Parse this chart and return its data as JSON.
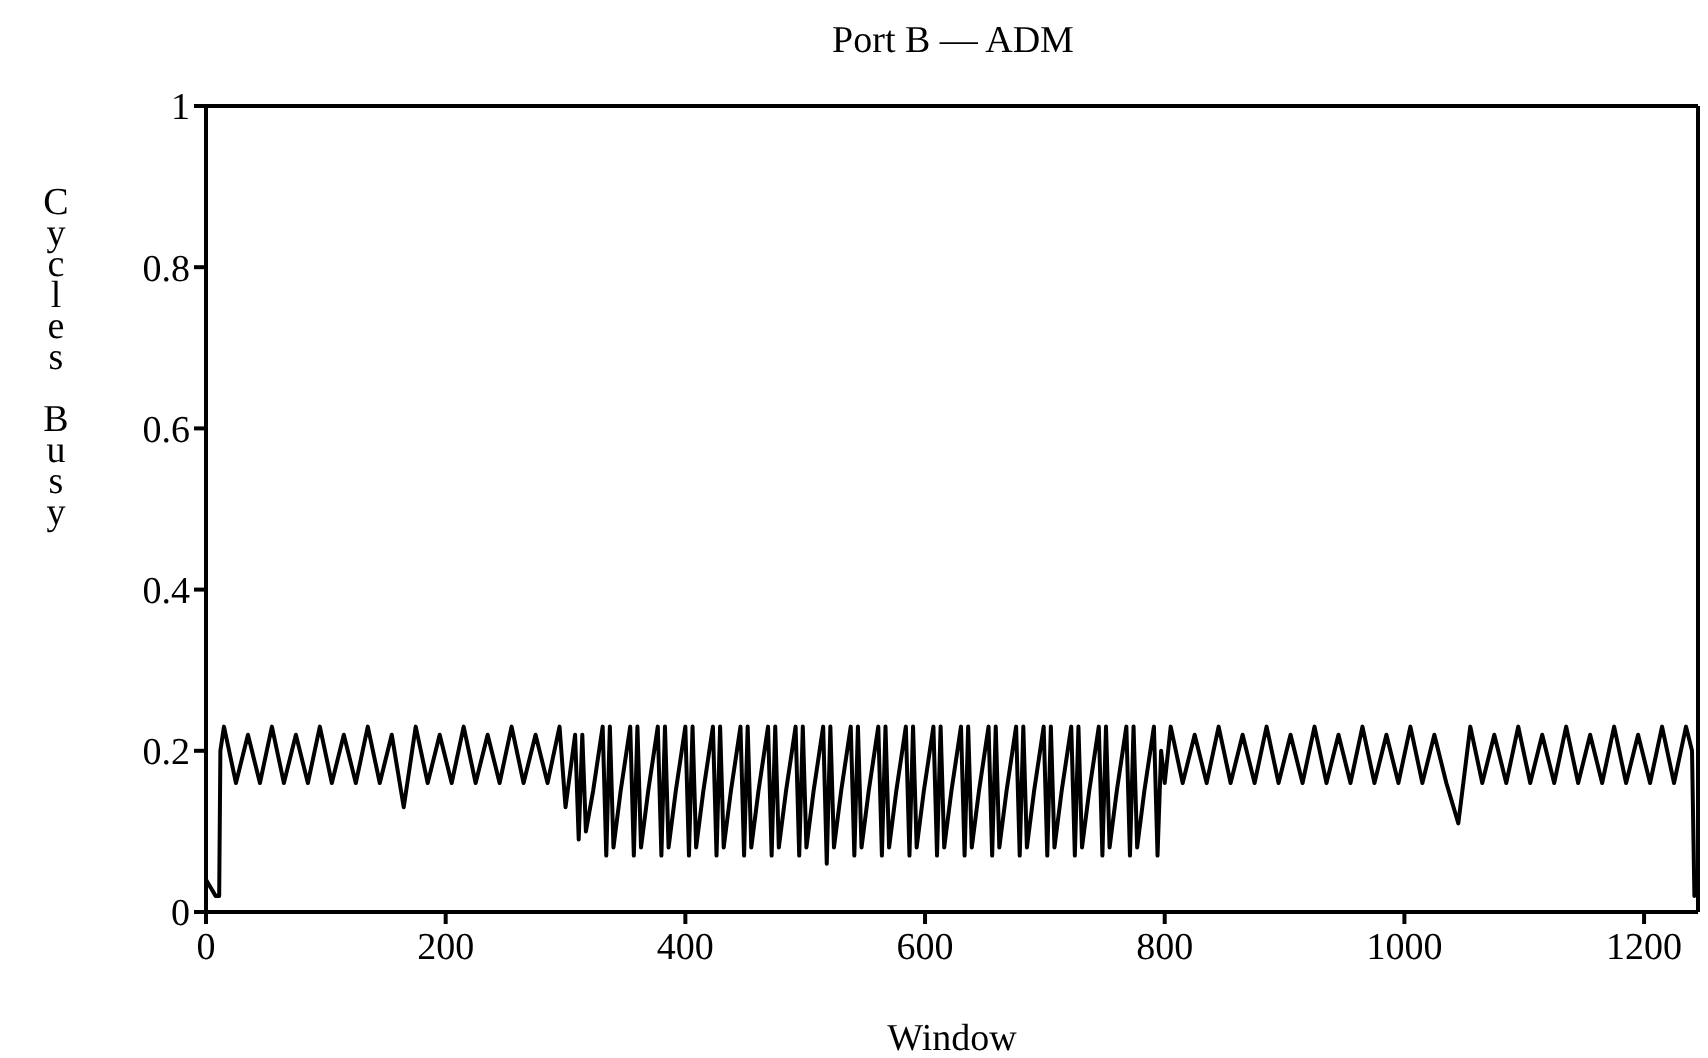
{
  "chart_data": {
    "type": "line",
    "title": "Port B — ADM",
    "xlabel": "Window",
    "ylabel": "Cycles Busy",
    "xlim": [
      0,
      1245
    ],
    "xticks": [
      0,
      200,
      400,
      600,
      800,
      1000,
      1200
    ],
    "ylim": [
      0,
      1
    ],
    "yticks": [
      0,
      0.2,
      0.4,
      0.6,
      0.8,
      1
    ],
    "grid": false,
    "legend": false,
    "series": [
      {
        "color": "#000000",
        "x": [
          0,
          4,
          8,
          11,
          12,
          15,
          25,
          35,
          45,
          55,
          65,
          75,
          85,
          95,
          105,
          115,
          125,
          135,
          145,
          155,
          165,
          175,
          185,
          195,
          205,
          215,
          225,
          235,
          245,
          255,
          265,
          275,
          285,
          295,
          300,
          308,
          311,
          314,
          317,
          323,
          331,
          334,
          337,
          340,
          346,
          354,
          357,
          360,
          363,
          369,
          377,
          380,
          383,
          386,
          392,
          400,
          403,
          406,
          409,
          415,
          423,
          426,
          429,
          432,
          438,
          446,
          449,
          452,
          455,
          461,
          469,
          472,
          475,
          478,
          484,
          492,
          495,
          498,
          501,
          507,
          515,
          518,
          521,
          524,
          530,
          538,
          541,
          544,
          547,
          553,
          561,
          564,
          567,
          570,
          576,
          584,
          587,
          590,
          593,
          599,
          607,
          610,
          613,
          616,
          622,
          630,
          633,
          636,
          639,
          645,
          653,
          656,
          659,
          662,
          668,
          676,
          679,
          682,
          685,
          691,
          699,
          702,
          705,
          708,
          714,
          722,
          725,
          728,
          731,
          737,
          745,
          748,
          751,
          754,
          760,
          768,
          771,
          774,
          777,
          783,
          791,
          794,
          797,
          800,
          805,
          815,
          825,
          835,
          845,
          855,
          865,
          875,
          885,
          895,
          905,
          915,
          925,
          935,
          945,
          955,
          965,
          975,
          985,
          995,
          1005,
          1015,
          1025,
          1035,
          1045,
          1055,
          1065,
          1075,
          1085,
          1095,
          1105,
          1115,
          1125,
          1135,
          1145,
          1155,
          1165,
          1175,
          1185,
          1195,
          1205,
          1215,
          1225,
          1235,
          1240,
          1242,
          1245
        ],
        "values": [
          0.04,
          0.03,
          0.02,
          0.02,
          0.2,
          0.23,
          0.16,
          0.22,
          0.16,
          0.23,
          0.16,
          0.22,
          0.16,
          0.23,
          0.16,
          0.22,
          0.16,
          0.23,
          0.16,
          0.22,
          0.13,
          0.23,
          0.16,
          0.22,
          0.16,
          0.23,
          0.16,
          0.22,
          0.16,
          0.23,
          0.16,
          0.22,
          0.16,
          0.23,
          0.13,
          0.22,
          0.09,
          0.22,
          0.1,
          0.15,
          0.23,
          0.07,
          0.23,
          0.08,
          0.15,
          0.23,
          0.07,
          0.23,
          0.08,
          0.15,
          0.23,
          0.07,
          0.23,
          0.08,
          0.15,
          0.23,
          0.07,
          0.23,
          0.08,
          0.15,
          0.23,
          0.07,
          0.23,
          0.08,
          0.15,
          0.23,
          0.07,
          0.23,
          0.08,
          0.15,
          0.23,
          0.07,
          0.23,
          0.08,
          0.15,
          0.23,
          0.07,
          0.23,
          0.08,
          0.15,
          0.23,
          0.06,
          0.23,
          0.08,
          0.15,
          0.23,
          0.07,
          0.23,
          0.08,
          0.15,
          0.23,
          0.07,
          0.23,
          0.08,
          0.15,
          0.23,
          0.07,
          0.23,
          0.08,
          0.15,
          0.23,
          0.07,
          0.23,
          0.08,
          0.15,
          0.23,
          0.07,
          0.23,
          0.08,
          0.15,
          0.23,
          0.07,
          0.23,
          0.08,
          0.15,
          0.23,
          0.07,
          0.23,
          0.08,
          0.15,
          0.23,
          0.07,
          0.23,
          0.08,
          0.15,
          0.23,
          0.07,
          0.23,
          0.08,
          0.15,
          0.23,
          0.07,
          0.23,
          0.08,
          0.15,
          0.23,
          0.07,
          0.23,
          0.08,
          0.15,
          0.23,
          0.07,
          0.2,
          0.16,
          0.23,
          0.16,
          0.22,
          0.16,
          0.23,
          0.16,
          0.22,
          0.16,
          0.23,
          0.16,
          0.22,
          0.16,
          0.23,
          0.16,
          0.22,
          0.16,
          0.23,
          0.16,
          0.22,
          0.16,
          0.23,
          0.16,
          0.22,
          0.16,
          0.11,
          0.23,
          0.16,
          0.22,
          0.16,
          0.23,
          0.16,
          0.22,
          0.16,
          0.23,
          0.16,
          0.22,
          0.16,
          0.23,
          0.16,
          0.22,
          0.16,
          0.23,
          0.16,
          0.23,
          0.2,
          0.02,
          0.04
        ]
      }
    ]
  }
}
